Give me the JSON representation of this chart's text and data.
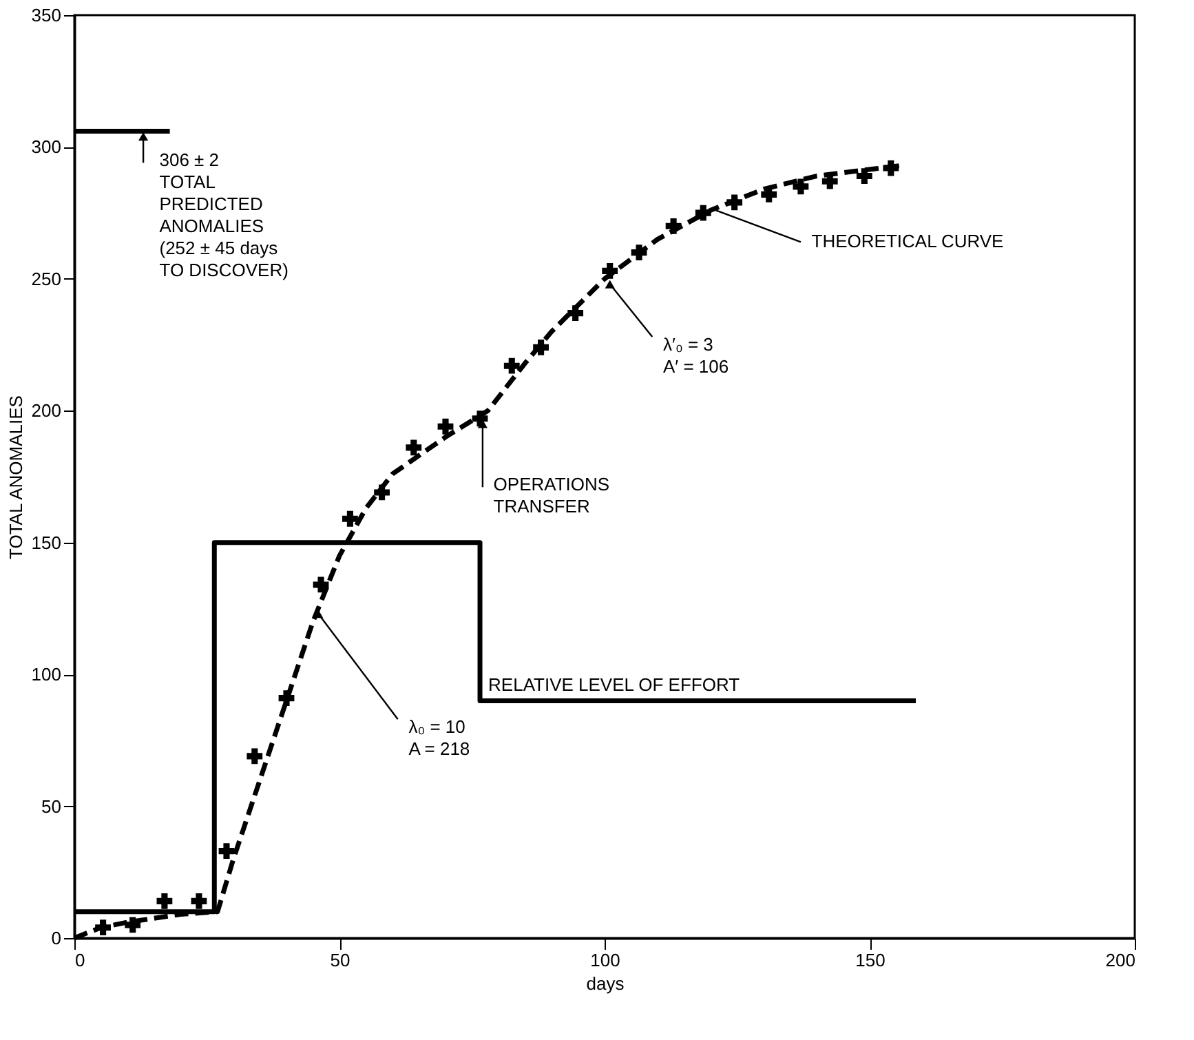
{
  "chart_data": {
    "type": "scatter",
    "xlabel": "days",
    "ylabel": "TOTAL ANOMALIES",
    "xlim": [
      0,
      200
    ],
    "xticks": [
      0,
      50,
      100,
      150,
      200
    ],
    "ylim": [
      0,
      350
    ],
    "yticks": [
      0,
      50,
      100,
      150,
      200,
      250,
      300,
      350
    ],
    "grid": false,
    "series": [
      {
        "type": "scatter",
        "marker": "cross",
        "color": "#000000",
        "x": [
          5.4,
          11,
          17,
          23.5,
          28.7,
          34,
          40,
          46.5,
          52,
          58,
          64,
          70,
          76.5,
          82.5,
          88,
          94.5,
          101,
          106.5,
          113,
          118.6,
          124.5,
          131,
          137,
          142.5,
          149,
          154
        ],
        "values": [
          4,
          5,
          14,
          14,
          33,
          69,
          91,
          134,
          159,
          169,
          186,
          194,
          197,
          217,
          224,
          237,
          253,
          260,
          270,
          275,
          279,
          282,
          285,
          287,
          289,
          292
        ]
      },
      {
        "type": "line",
        "name": "THEORETICAL CURVE",
        "line_style": "dashed",
        "color": "#000000",
        "x": [
          0,
          5,
          10,
          20,
          27,
          30,
          35,
          40,
          45,
          50,
          55,
          60,
          70,
          78,
          85,
          90,
          100,
          110,
          120,
          130,
          140,
          156
        ],
        "values": [
          0,
          4,
          6,
          9,
          10,
          30,
          60,
          90,
          120,
          145,
          163,
          176,
          190,
          200,
          218,
          230,
          250,
          265,
          276,
          284,
          289,
          293
        ]
      },
      {
        "type": "line",
        "name": "RELATIVE LEVEL OF EFFORT",
        "line_style": "solid",
        "color": "#000000",
        "x": [
          0,
          26.4,
          26.4,
          76.5,
          76.5,
          158.7
        ],
        "values": [
          10,
          10,
          150,
          150,
          90,
          90
        ]
      },
      {
        "type": "line",
        "line_style": "solid",
        "color": "#000000",
        "x": [
          0,
          18
        ],
        "values": [
          306,
          306
        ]
      }
    ],
    "annotations": [
      {
        "text": "306 ± 2\nTOTAL\nPREDICTED\nANOMALIES\n(252 ± 45 days\nTO DISCOVER)",
        "x": 13,
        "y": 306
      },
      {
        "text": "OPERATIONS\nTRANSFER",
        "x": 77,
        "y": 197
      },
      {
        "text": "λ₀ = 10\n\nA = 218",
        "x": 46,
        "y": 125
      },
      {
        "text": "λ′₀ = 3\n\nA′ = 106",
        "x": 101,
        "y": 250
      }
    ]
  }
}
